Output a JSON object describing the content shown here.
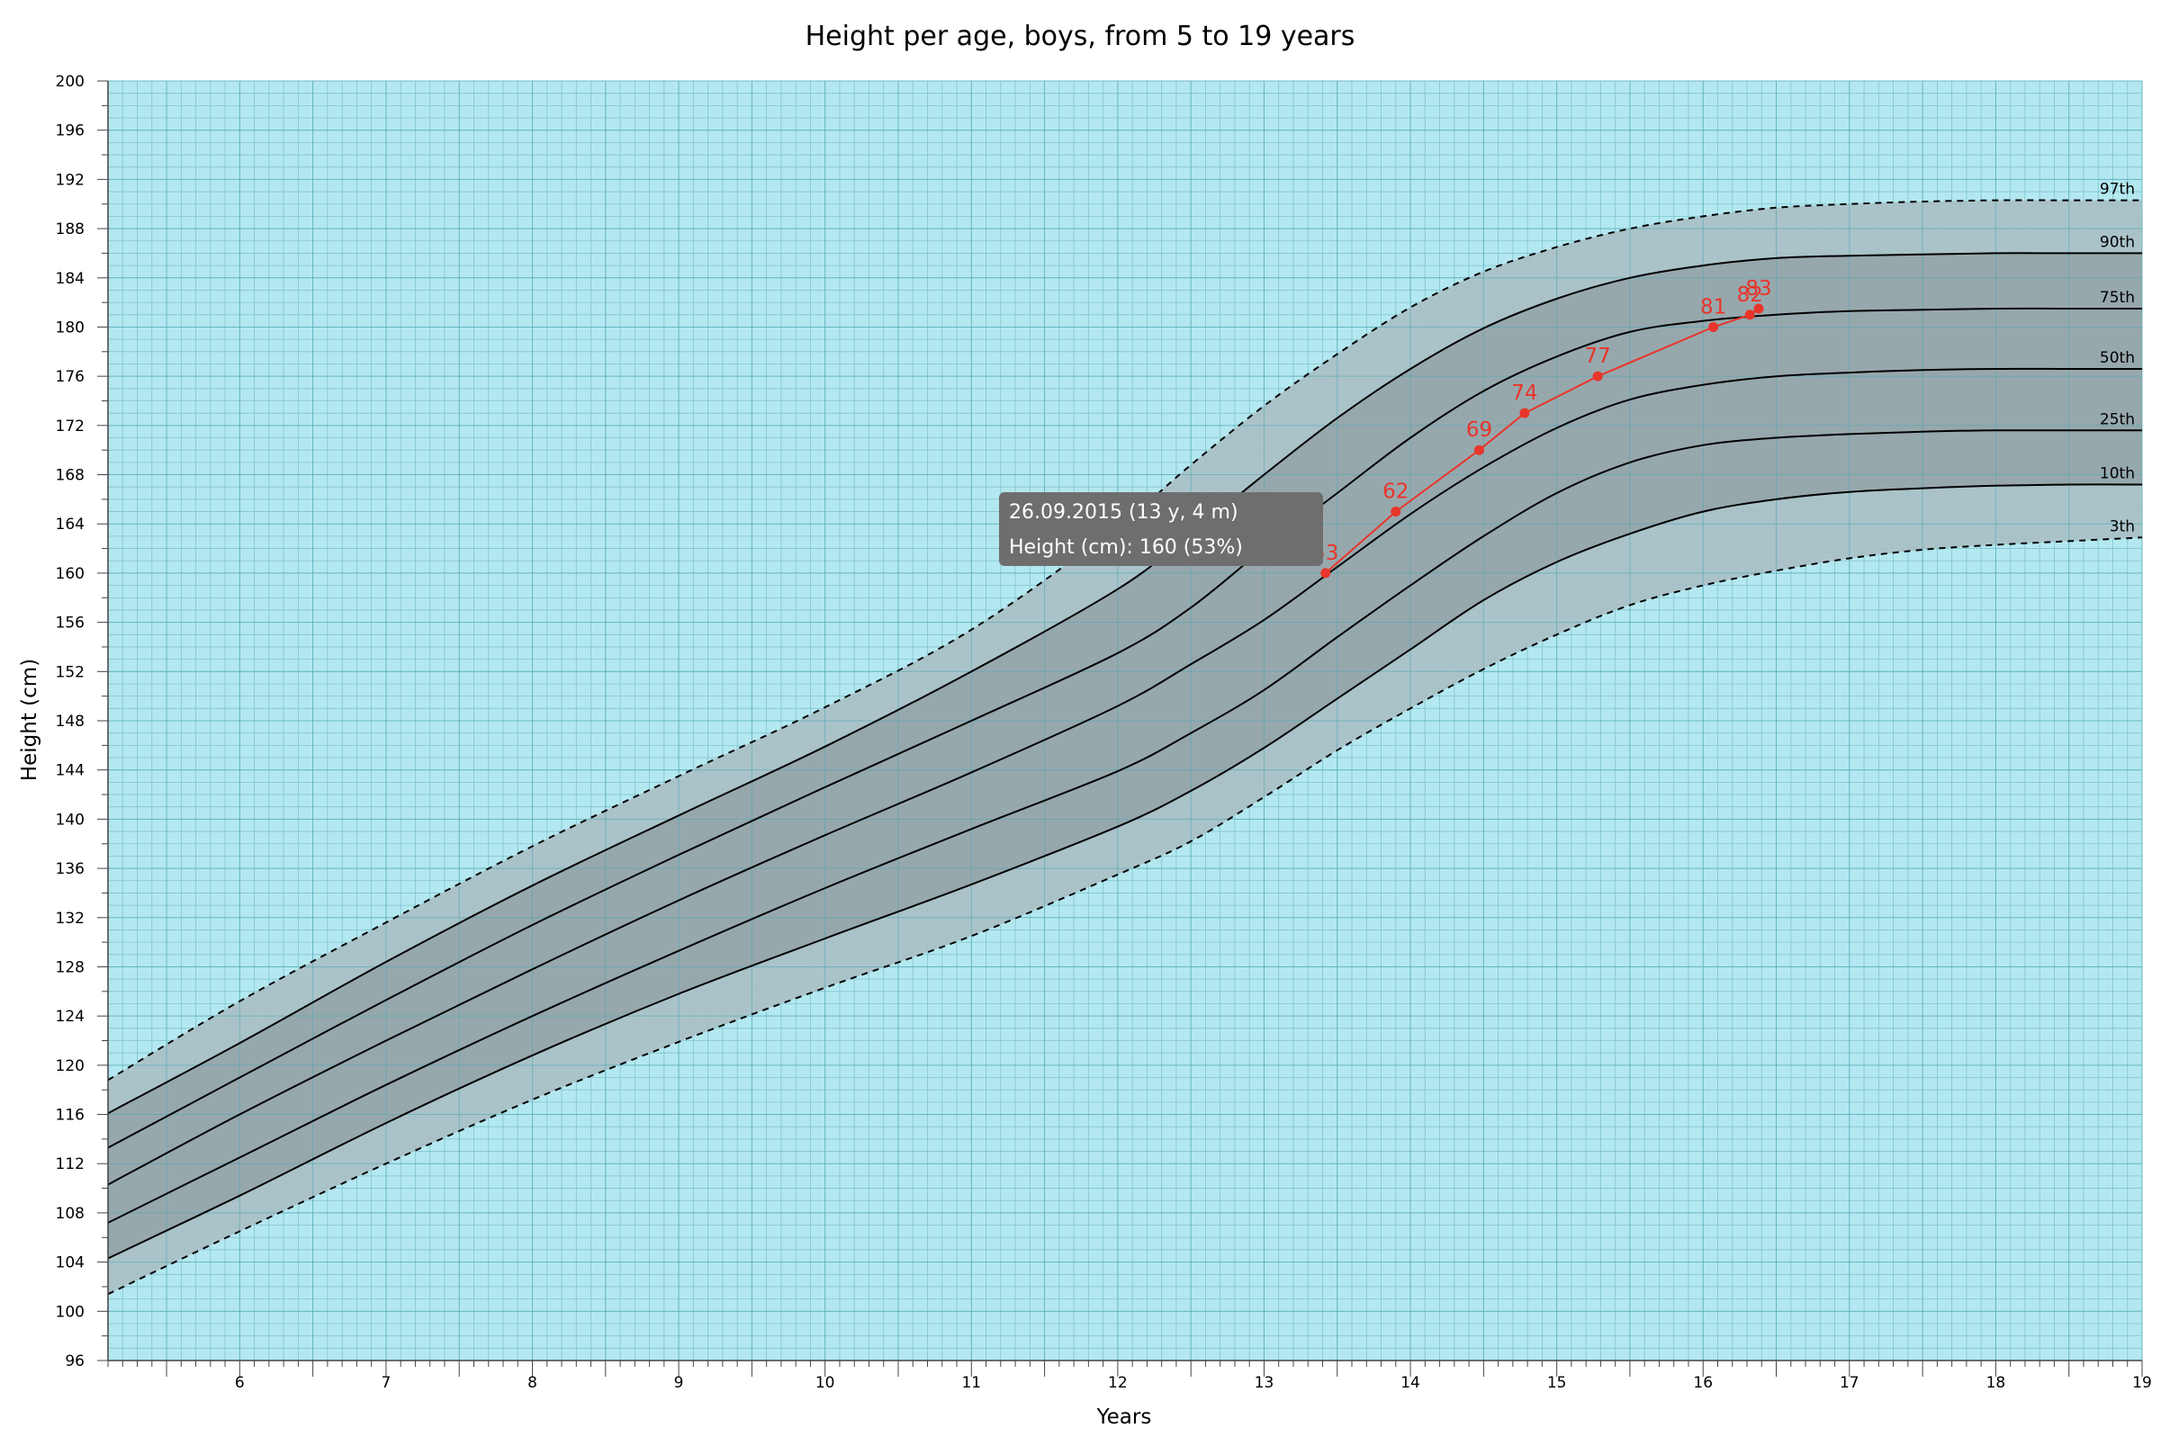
{
  "chart_data": {
    "type": "line",
    "title": "Height per age, boys, from 5 to 19 years",
    "xlabel": "Years",
    "ylabel": "Height (cm)",
    "xlim": [
      5.1,
      19
    ],
    "ylim": [
      96,
      200
    ],
    "x_ticks": [
      6,
      7,
      8,
      9,
      10,
      11,
      12,
      13,
      14,
      15,
      16,
      17,
      18,
      19
    ],
    "y_ticks": [
      96,
      100,
      104,
      108,
      112,
      116,
      120,
      124,
      128,
      132,
      136,
      140,
      144,
      148,
      152,
      156,
      160,
      164,
      168,
      172,
      176,
      180,
      184,
      188,
      192,
      196,
      200
    ],
    "grid": true,
    "colors": {
      "plot_background": "#b4e8f0",
      "grid_minor": "#7fc4cf",
      "grid_major": "#4aa5b4",
      "outer_band": "#a9bfc5",
      "inner_band": "#96a6aa",
      "patient_line": "#e8352a",
      "tooltip_background": "#6e6e6e"
    },
    "percentile_ages": [
      5.1,
      6,
      7,
      8,
      9,
      10,
      11,
      12,
      12.5,
      13,
      13.5,
      14,
      14.5,
      15,
      15.5,
      16,
      16.5,
      17,
      17.5,
      18,
      18.5,
      19
    ],
    "percentiles": [
      {
        "name": "97th",
        "style": "dashed",
        "values": [
          118.8,
          125.2,
          131.6,
          137.8,
          143.5,
          149.1,
          155.4,
          163.8,
          168.8,
          173.6,
          177.8,
          181.6,
          184.5,
          186.5,
          188.0,
          189.0,
          189.7,
          190.0,
          190.2,
          190.3,
          190.3,
          190.3
        ]
      },
      {
        "name": "90th",
        "style": "solid",
        "values": [
          116.1,
          121.8,
          128.4,
          134.6,
          140.3,
          145.9,
          152.0,
          158.7,
          163.2,
          168.0,
          172.6,
          176.6,
          179.9,
          182.3,
          184.0,
          185.0,
          185.6,
          185.8,
          185.9,
          186.0,
          186.0,
          186.0
        ]
      },
      {
        "name": "75th",
        "style": "solid",
        "values": [
          113.3,
          119.0,
          125.3,
          131.4,
          137.1,
          142.6,
          148.0,
          153.5,
          157.2,
          162.0,
          166.5,
          171.0,
          174.8,
          177.6,
          179.6,
          180.5,
          181.0,
          181.3,
          181.4,
          181.5,
          181.5,
          181.5
        ]
      },
      {
        "name": "50th",
        "style": "solid",
        "values": [
          110.3,
          116.0,
          122.0,
          127.8,
          133.4,
          138.7,
          143.8,
          149.2,
          152.6,
          156.2,
          160.5,
          164.8,
          168.6,
          171.8,
          174.1,
          175.3,
          176.0,
          176.3,
          176.5,
          176.6,
          176.6,
          176.6
        ]
      },
      {
        "name": "25th",
        "style": "solid",
        "values": [
          107.2,
          112.5,
          118.4,
          124.0,
          129.3,
          134.4,
          139.2,
          143.9,
          147.0,
          150.5,
          154.8,
          159.0,
          163.0,
          166.5,
          169.0,
          170.4,
          171.0,
          171.3,
          171.5,
          171.6,
          171.6,
          171.6
        ]
      },
      {
        "name": "10th",
        "style": "solid",
        "values": [
          104.3,
          109.4,
          115.3,
          120.8,
          125.8,
          130.3,
          134.7,
          139.4,
          142.3,
          145.8,
          149.8,
          153.8,
          157.8,
          160.9,
          163.2,
          165.0,
          166.0,
          166.6,
          166.9,
          167.1,
          167.2,
          167.2
        ]
      },
      {
        "name": "3th",
        "style": "dashed",
        "values": [
          101.4,
          106.5,
          112.0,
          117.2,
          121.9,
          126.3,
          130.5,
          135.5,
          138.2,
          141.8,
          145.6,
          149.0,
          152.2,
          155.0,
          157.4,
          159.0,
          160.2,
          161.2,
          161.9,
          162.3,
          162.6,
          162.9
        ]
      }
    ],
    "series": [
      {
        "name": "Height (cm)",
        "x": [
          13.42,
          13.9,
          14.47,
          14.78,
          15.28,
          16.07,
          16.32,
          16.38
        ],
        "y": [
          160,
          165,
          170,
          173,
          176,
          180,
          181,
          181.5
        ],
        "labels": [
          "53",
          "62",
          "69",
          "74",
          "77",
          "81",
          "82",
          "83"
        ]
      }
    ],
    "tooltip": {
      "line1": "26.09.2015 (13 y, 4 m)",
      "line2": "Height (cm): 160 (53%)"
    }
  }
}
